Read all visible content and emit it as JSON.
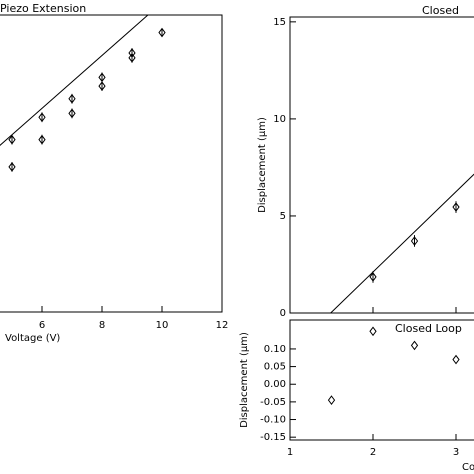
{
  "chart_data": [
    {
      "type": "scatter",
      "title": "Piezo Extension",
      "xlabel": "Voltage (V)",
      "xlim": [
        3,
        12
      ],
      "ylim": [
        0,
        3.05
      ],
      "xticks": [
        6,
        8,
        10,
        12
      ],
      "series": [
        {
          "color": "#000",
          "marker": "diamond",
          "x": [
            5,
            5,
            6,
            6,
            7,
            7,
            8,
            8,
            9,
            9,
            10
          ],
          "values": [
            1.49,
            1.77,
            1.77,
            2.0,
            2.04,
            2.19,
            2.32,
            2.41,
            2.61,
            2.66,
            2.87
          ],
          "errors": [
            0.05,
            0.05,
            0.05,
            0.05,
            0.05,
            0.05,
            0.05,
            0.05,
            0.05,
            0.05,
            0.04
          ]
        },
        {
          "color": "#000",
          "marker": "line",
          "x": [
            3.6,
            9.53
          ],
          "values": [
            1.44,
            3.05
          ]
        }
      ]
    },
    {
      "type": "scatter",
      "title": "Closed",
      "ylabel": "Displacement (μm)",
      "xlim": [
        1,
        3.5
      ],
      "ylim": [
        0,
        15.25
      ],
      "yticks": [
        0,
        5,
        10,
        15
      ],
      "xticks_marks": [
        1,
        2,
        3
      ],
      "series": [
        {
          "color": "#000",
          "marker": "diamond",
          "x": [
            2,
            2.5,
            3
          ],
          "values": [
            1.86,
            3.71,
            5.46
          ],
          "errors": [
            0.3,
            0.3,
            0.3
          ]
        },
        {
          "color": "#000",
          "marker": "line",
          "x": [
            1.49,
            3.22
          ],
          "values": [
            0,
            7.16
          ]
        }
      ]
    },
    {
      "type": "scatter",
      "title": "Closed Loop",
      "ylabel": "Displacement (μm)",
      "xlabel": "Conte",
      "xlim": [
        1,
        3.5
      ],
      "ylim": [
        -0.158,
        0.182
      ],
      "xticks": [
        1,
        2,
        3
      ],
      "yticks": [
        {
          "value": 0.1,
          "label": "0.10"
        },
        {
          "value": 0.05,
          "label": "0.05"
        },
        {
          "value": 0,
          "label": "0.00"
        },
        {
          "value": -0.05,
          "label": "-0.05"
        },
        {
          "value": -0.1,
          "label": "-0.10"
        },
        {
          "value": -0.15,
          "label": "-0.15"
        }
      ],
      "series": [
        {
          "color": "#000",
          "marker": "diamond",
          "x": [
            1.5,
            2,
            2.5,
            3
          ],
          "values": [
            -0.045,
            0.15,
            0.11,
            0.07
          ]
        }
      ]
    }
  ]
}
